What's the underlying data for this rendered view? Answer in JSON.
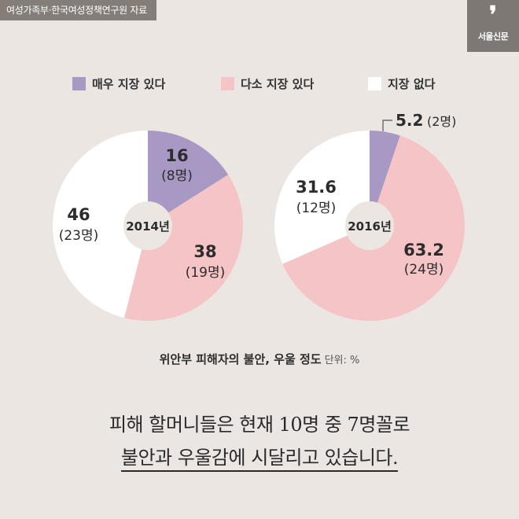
{
  "source": "여성가족부·한국여성정책연구원 자료",
  "brand": {
    "mark": "❜",
    "name": "서울신문"
  },
  "colors": {
    "very": "#a898c4",
    "some": "#f4c4c6",
    "none": "#ffffff",
    "hole": "#ebe6e1"
  },
  "chart_data": [
    {
      "type": "pie",
      "title": "2014년",
      "slices": [
        {
          "label": "매우 지장 있다",
          "value": 16,
          "count": "(8명)"
        },
        {
          "label": "다소 지장 있다",
          "value": 38,
          "count": "(19명)"
        },
        {
          "label": "지장 없다",
          "value": 46,
          "count": "(23명)"
        }
      ]
    },
    {
      "type": "pie",
      "title": "2016년",
      "slices": [
        {
          "label": "매우 지장 있다",
          "value": 5.2,
          "count": "(2명)"
        },
        {
          "label": "다소 지장 있다",
          "value": 63.2,
          "count": "(24명)"
        },
        {
          "label": "지장 없다",
          "value": 31.6,
          "count": "(12명)"
        }
      ]
    }
  ],
  "legend": [
    "매우 지장 있다",
    "다소 지장 있다",
    "지장 없다"
  ],
  "caption": "위안부 피해자의 불안, 우울 정도",
  "unit": "단위: %",
  "line1": "피해 할머니들은 현재 10명 중 7명꼴로",
  "line2": "불안과 우울감에 시달리고 있습니다."
}
